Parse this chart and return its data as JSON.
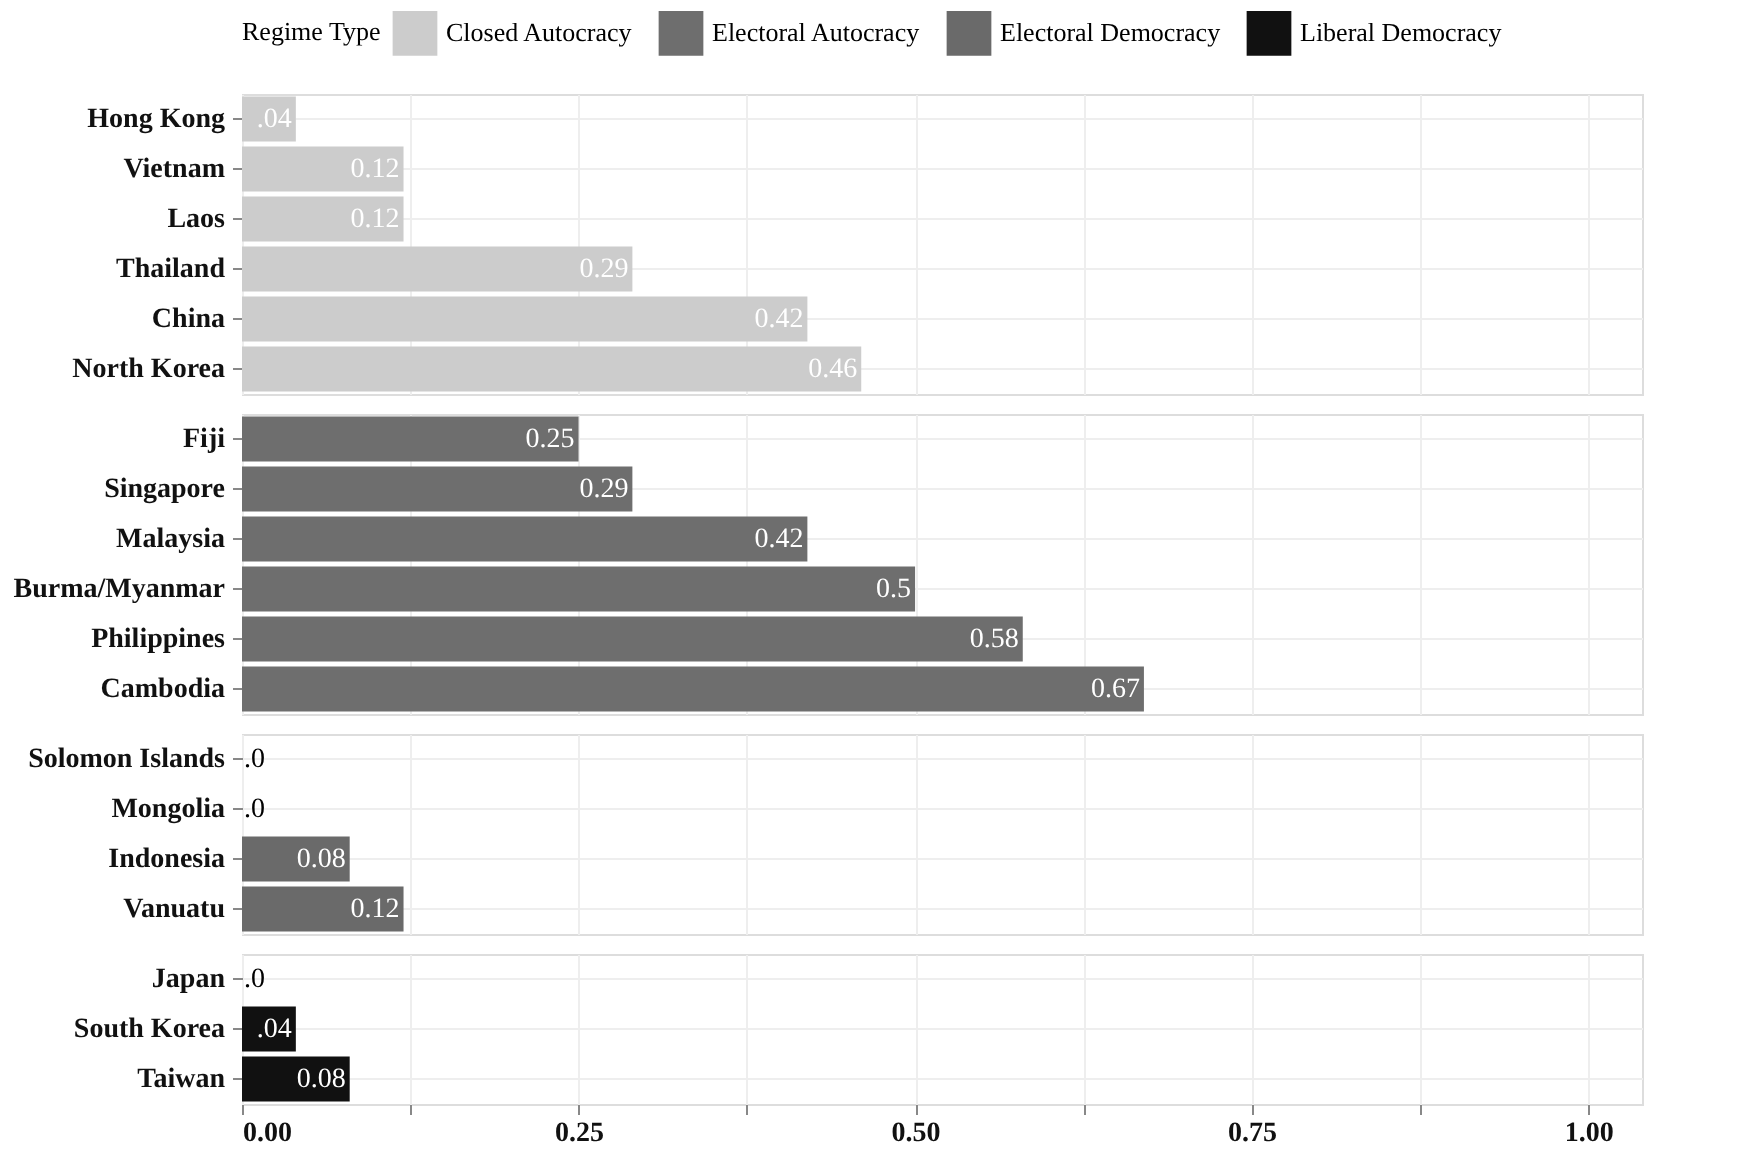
{
  "chart_data": [
    {
      "type": "bar",
      "orientation": "horizontal",
      "legend": "top",
      "legend_title": "Regime Type",
      "grid": true,
      "tick_labels": "y",
      "categories": [
        "Hong Kong",
        "Vietnam",
        "Laos",
        "Thailand",
        "China",
        "North Korea"
      ],
      "xlim": [
        0,
        1.04
      ],
      "xticks": [
        0,
        {
          "value": 0.125,
          "label": null
        },
        0.25,
        {
          "value": 0.375,
          "label": null
        },
        0.5,
        {
          "value": 0.625,
          "label": null
        },
        0.75,
        {
          "value": 0.875,
          "label": null
        },
        1
      ],
      "series": [
        {
          "name": "Closed Autocracy",
          "color": "#cccccc",
          "values": [
            0.04,
            0.12,
            0.12,
            0.29,
            0.42,
            0.46
          ],
          "value_labels": [
            ".04",
            "0.12",
            "0.12",
            "0.29",
            "0.42",
            "0.46"
          ]
        }
      ]
    },
    {
      "type": "bar",
      "orientation": "horizontal",
      "grid": true,
      "tick_labels": "y",
      "categories": [
        "Fiji",
        "Singapore",
        "Malaysia",
        "Burma/Myanmar",
        "Philippines",
        "Cambodia"
      ],
      "xlim": [
        0,
        1.04
      ],
      "xticks": [
        0,
        {
          "value": 0.125,
          "label": null
        },
        0.25,
        {
          "value": 0.375,
          "label": null
        },
        0.5,
        {
          "value": 0.625,
          "label": null
        },
        0.75,
        {
          "value": 0.875,
          "label": null
        },
        1
      ],
      "series": [
        {
          "name": "Electoral Autocracy",
          "color": "#6e6e6e",
          "values": [
            0.25,
            0.29,
            0.42,
            0.5,
            0.58,
            0.67
          ],
          "value_labels": [
            "0.25",
            "0.29",
            "0.42",
            "0.5",
            "0.58",
            "0.67"
          ]
        }
      ]
    },
    {
      "type": "bar",
      "orientation": "horizontal",
      "grid": true,
      "tick_labels": "y",
      "categories": [
        "Solomon Islands",
        "Mongolia",
        "Indonesia",
        "Vanuatu"
      ],
      "xlim": [
        0,
        1.04
      ],
      "xticks": [
        0,
        {
          "value": 0.125,
          "label": null
        },
        0.25,
        {
          "value": 0.375,
          "label": null
        },
        0.5,
        {
          "value": 0.625,
          "label": null
        },
        0.75,
        {
          "value": 0.875,
          "label": null
        },
        1
      ],
      "series": [
        {
          "name": "Electoral Democracy",
          "color": "#6a6a6a",
          "values": [
            0,
            0,
            0.08,
            0.12
          ],
          "value_labels": [
            ".0",
            ".0",
            "0.08",
            "0.12"
          ]
        }
      ]
    },
    {
      "type": "bar",
      "orientation": "horizontal",
      "grid": true,
      "categories": [
        "Japan",
        "South Korea",
        "Taiwan"
      ],
      "xlim": [
        0,
        1.04
      ],
      "xticks": [
        {
          "value": 0,
          "label": "0.00"
        },
        {
          "value": 0.125,
          "label": null
        },
        {
          "value": 0.25,
          "label": "0.25"
        },
        {
          "value": 0.375,
          "label": null
        },
        {
          "value": 0.5,
          "label": "0.50"
        },
        {
          "value": 0.625,
          "label": null
        },
        {
          "value": 0.75,
          "label": "0.75"
        },
        {
          "value": 0.875,
          "label": null
        },
        {
          "value": 1,
          "label": "1.00"
        }
      ],
      "series": [
        {
          "name": "Liberal Democracy",
          "color": "#111111",
          "values": [
            0,
            0.04,
            0.08
          ],
          "value_labels": [
            ".0",
            ".04",
            "0.08"
          ]
        }
      ]
    }
  ]
}
